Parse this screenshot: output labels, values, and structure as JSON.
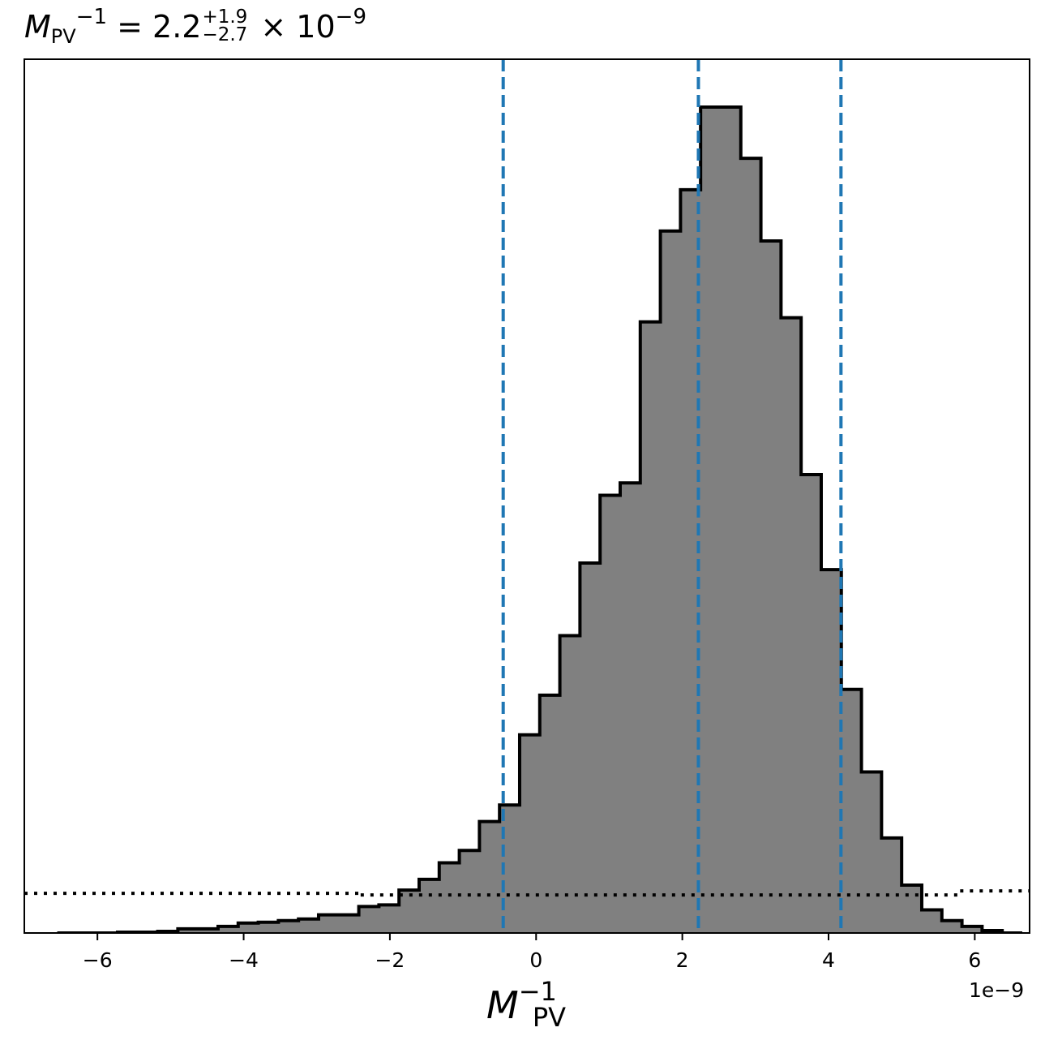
{
  "title": {
    "base": "M",
    "sub": "PV",
    "sup": "−1",
    "eq": " = 2.2",
    "err_plus": "+1.9",
    "err_minus": "−2.7",
    "times": " × 10",
    "exp": "−9"
  },
  "axis": {
    "xlabel_base": "M",
    "xlabel_sub": "PV",
    "xlabel_sup": "−1",
    "offset_text": "1e−9"
  },
  "colors": {
    "fill": "#808080",
    "edge": "#000000",
    "quantile_lines": "#1f77b4",
    "prior_line": "#000000"
  },
  "chart_data": {
    "type": "histogram",
    "x_unit_scale": "1e-9",
    "xlim": [
      -7.0,
      6.75
    ],
    "ylim": [
      0,
      1.058
    ],
    "x_ticks": [
      -6,
      -4,
      -2,
      0,
      2,
      4,
      6
    ],
    "x_tick_labels": [
      "−6",
      "−4",
      "−2",
      "0",
      "2",
      "4",
      "6"
    ],
    "y_ticks_visible": false,
    "grid": false,
    "bin_edges": [
      -6.55,
      -6.275,
      -6.0,
      -5.725,
      -5.45,
      -5.175,
      -4.9,
      -4.625,
      -4.35,
      -4.075,
      -3.8,
      -3.525,
      -3.25,
      -2.975,
      -2.7,
      -2.425,
      -2.15,
      -1.875,
      -1.6,
      -1.325,
      -1.05,
      -0.775,
      -0.5,
      -0.225,
      0.05,
      0.325,
      0.6,
      0.875,
      1.15,
      1.425,
      1.7,
      1.975,
      2.25,
      2.525,
      2.8,
      3.075,
      3.35,
      3.625,
      3.9,
      4.175,
      4.45,
      4.725,
      5.0,
      5.275,
      5.55,
      5.825,
      6.1,
      6.375,
      6.65
    ],
    "bin_density": [
      0.0,
      0.0,
      0.0,
      0.001,
      0.001,
      0.002,
      0.005,
      0.005,
      0.008,
      0.012,
      0.013,
      0.015,
      0.017,
      0.022,
      0.022,
      0.032,
      0.034,
      0.052,
      0.065,
      0.085,
      0.1,
      0.135,
      0.155,
      0.24,
      0.288,
      0.36,
      0.448,
      0.53,
      0.545,
      0.74,
      0.85,
      0.9,
      1.0,
      1.0,
      0.938,
      0.838,
      0.745,
      0.555,
      0.44,
      0.295,
      0.195,
      0.115,
      0.058,
      0.028,
      0.015,
      0.008,
      0.003,
      0.0
    ],
    "quantile_lines": [
      -0.45,
      2.22,
      4.17
    ],
    "quantile_style": "dashed",
    "prior_line": {
      "style": "dotted",
      "segments": [
        {
          "x": [
            -7.0,
            -2.4
          ],
          "y": 0.048
        },
        {
          "x": [
            -2.4,
            5.8
          ],
          "y": 0.046
        },
        {
          "x": [
            5.8,
            6.75
          ],
          "y": 0.051
        }
      ]
    }
  }
}
